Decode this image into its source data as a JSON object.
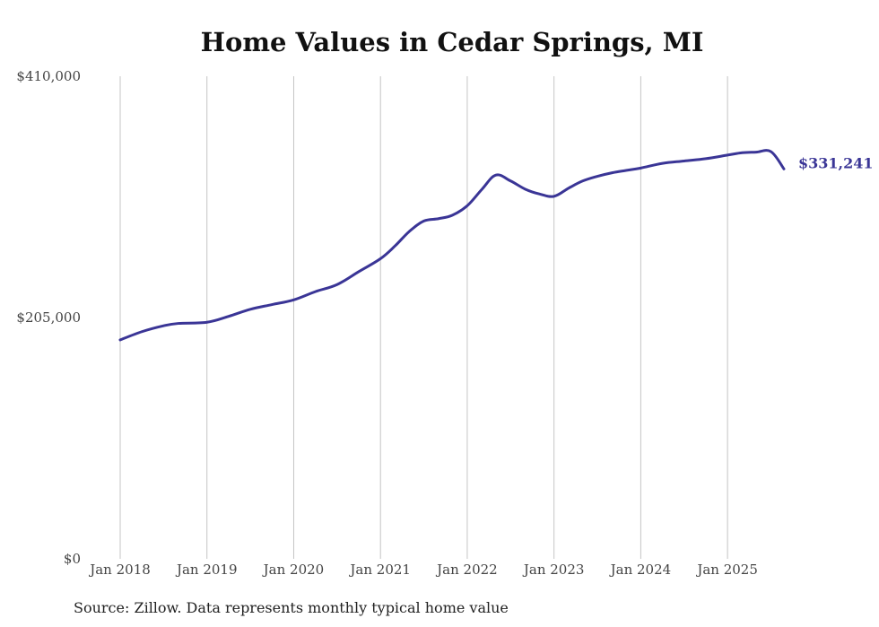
{
  "chart_data": {
    "type": "line",
    "title": "Home Values in Cedar Springs, MI",
    "xlabel": "",
    "ylabel": "",
    "ylim": [
      0,
      410000
    ],
    "yticks": [
      {
        "value": 0,
        "label": "$0"
      },
      {
        "value": 205000,
        "label": "$205,000"
      },
      {
        "value": 410000,
        "label": "$410,000"
      }
    ],
    "xlim": [
      2018.0,
      2025.65
    ],
    "xticks": [
      {
        "value": 2018,
        "label": "Jan 2018"
      },
      {
        "value": 2019,
        "label": "Jan 2019"
      },
      {
        "value": 2020,
        "label": "Jan 2020"
      },
      {
        "value": 2021,
        "label": "Jan 2021"
      },
      {
        "value": 2022,
        "label": "Jan 2022"
      },
      {
        "value": 2023,
        "label": "Jan 2023"
      },
      {
        "value": 2024,
        "label": "Jan 2024"
      },
      {
        "value": 2025,
        "label": "Jan 2025"
      }
    ],
    "grid": "vertical",
    "series": [
      {
        "name": "Typical home value",
        "color": "#3a3596",
        "end_label": "$331,241",
        "x": [
          2018.0,
          2018.25,
          2018.5,
          2018.67,
          2019.0,
          2019.25,
          2019.5,
          2019.75,
          2020.0,
          2020.25,
          2020.5,
          2020.75,
          2021.0,
          2021.17,
          2021.33,
          2021.5,
          2021.67,
          2021.83,
          2022.0,
          2022.17,
          2022.33,
          2022.5,
          2022.67,
          2022.83,
          2023.0,
          2023.17,
          2023.33,
          2023.5,
          2023.67,
          2023.83,
          2024.0,
          2024.25,
          2024.5,
          2024.75,
          2025.0,
          2025.17,
          2025.33,
          2025.5,
          2025.65
        ],
        "values": [
          186000,
          193000,
          198000,
          200000,
          201000,
          206000,
          212000,
          216000,
          220000,
          227000,
          233000,
          244000,
          255000,
          266000,
          278000,
          287000,
          289000,
          292000,
          300000,
          314000,
          326000,
          321000,
          314000,
          310000,
          308000,
          315000,
          321000,
          325000,
          328000,
          330000,
          332000,
          336000,
          338000,
          340000,
          343000,
          345000,
          345500,
          346000,
          331241
        ]
      }
    ]
  },
  "source": "Source: Zillow. Data represents monthly typical home value"
}
